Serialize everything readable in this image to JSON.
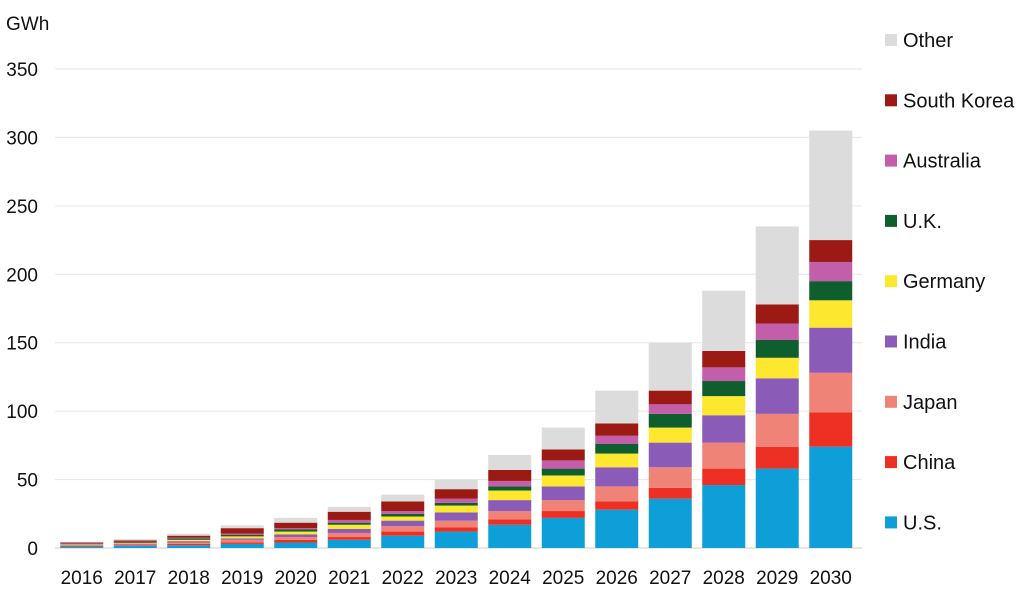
{
  "chart_data": {
    "type": "bar",
    "stacked": true,
    "ylabel": "GWh",
    "ylim": [
      0,
      350
    ],
    "yticks": [
      0,
      50,
      100,
      150,
      200,
      250,
      300,
      350
    ],
    "grid": true,
    "legend_position": "right",
    "categories": [
      "2016",
      "2017",
      "2018",
      "2019",
      "2020",
      "2021",
      "2022",
      "2023",
      "2024",
      "2025",
      "2026",
      "2027",
      "2028",
      "2029",
      "2030"
    ],
    "series": [
      {
        "name": "U.S.",
        "color": "#0f9fd8",
        "values": [
          1,
          1.5,
          2,
          3,
          4,
          6,
          9,
          12,
          17,
          22,
          28,
          36,
          46,
          58,
          74
        ]
      },
      {
        "name": "China",
        "color": "#ee2f24",
        "values": [
          0.5,
          0.5,
          1,
          1,
          2,
          2,
          3,
          3,
          4,
          5,
          6,
          8,
          12,
          16,
          25
        ]
      },
      {
        "name": "Japan",
        "color": "#f08377",
        "values": [
          0.5,
          0.5,
          1,
          2,
          2,
          3,
          4,
          5,
          6,
          8,
          11,
          15,
          19,
          24,
          29
        ]
      },
      {
        "name": "India",
        "color": "#8a5cb8",
        "values": [
          0.3,
          0.5,
          1,
          1,
          2,
          3,
          4,
          6,
          8,
          10,
          14,
          18,
          20,
          26,
          33
        ]
      },
      {
        "name": "Germany",
        "color": "#fde72f",
        "values": [
          0.4,
          0.5,
          1,
          1.5,
          2,
          3,
          3,
          5,
          7,
          8,
          10,
          11,
          14,
          15,
          20
        ]
      },
      {
        "name": "U.K.",
        "color": "#0f5e2e",
        "values": [
          0.3,
          0.5,
          1,
          1,
          1.5,
          1.5,
          2,
          2,
          3,
          5,
          7,
          10,
          11,
          13,
          14
        ]
      },
      {
        "name": "Australia",
        "color": "#c25eaa",
        "values": [
          0.3,
          0.5,
          0.5,
          1,
          1,
          2,
          2,
          3,
          4,
          6,
          6,
          7,
          10,
          12,
          14
        ]
      },
      {
        "name": "South Korea",
        "color": "#9b1a13",
        "values": [
          0.7,
          1,
          1.5,
          4,
          4,
          6,
          7,
          7,
          8,
          8,
          9,
          10,
          12,
          14,
          16
        ]
      },
      {
        "name": "Other",
        "color": "#dcdcdc",
        "values": [
          0.5,
          1,
          1.5,
          2,
          3.5,
          3.5,
          5,
          7,
          11,
          16,
          24,
          35,
          44,
          57,
          80
        ]
      }
    ]
  }
}
